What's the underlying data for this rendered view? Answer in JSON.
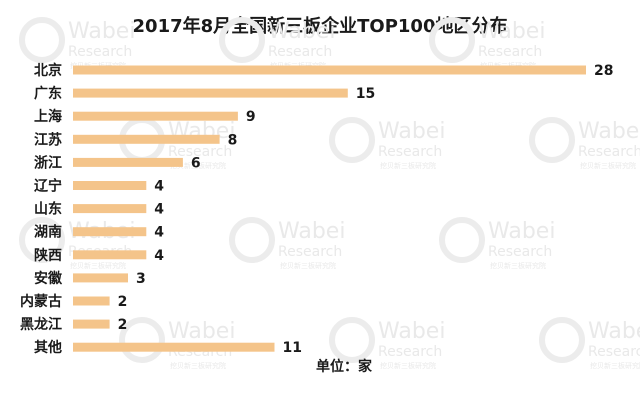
{
  "chart_data": {
    "type": "bar",
    "orientation": "horizontal",
    "title": "2017年8月全国新三板企业TOP100地区分布",
    "categories": [
      "北京",
      "广东",
      "上海",
      "江苏",
      "浙江",
      "辽宁",
      "山东",
      "湖南",
      "陕西",
      "安徽",
      "内蒙古",
      "黑龙江",
      "其他"
    ],
    "values": [
      28,
      15,
      9,
      8,
      6,
      4,
      4,
      4,
      4,
      3,
      2,
      2,
      11
    ],
    "xlim": [
      0,
      28
    ],
    "grid": false,
    "data_labels": true,
    "bar_color": "#f4c48a",
    "unit_label": "单位：家"
  },
  "watermark": {
    "brand": "Wabei",
    "sub": "Research",
    "tagline": "挖贝新三板研究院"
  }
}
